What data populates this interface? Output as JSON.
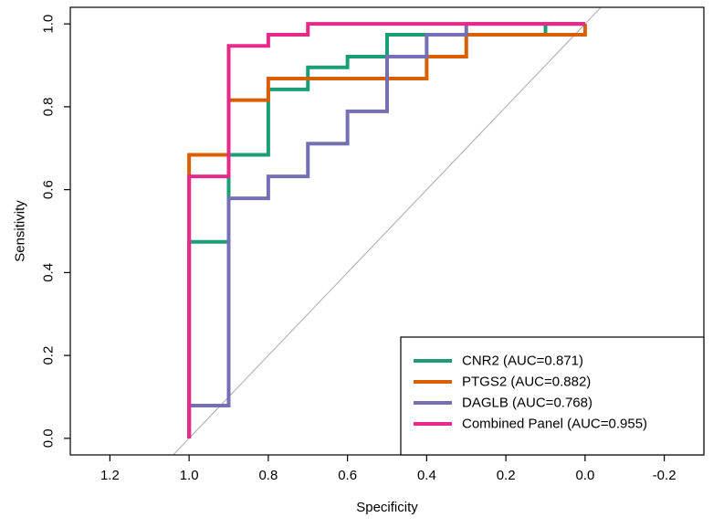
{
  "chart_data": {
    "type": "line",
    "title": "",
    "xlabel": "Specificity",
    "ylabel": "Sensitivity",
    "xlim": [
      1.3,
      -0.3
    ],
    "ylim": [
      -0.04,
      1.04
    ],
    "x_reversed": true,
    "grid": false,
    "legend_position": "bottom-right",
    "x_ticks": [
      1.2,
      1.0,
      0.8,
      0.6,
      0.4,
      0.2,
      0.0,
      -0.2
    ],
    "x_tick_labels": [
      "1.2",
      "1.0",
      "0.8",
      "0.6",
      "0.4",
      "0.2",
      "0.0",
      "-0.2"
    ],
    "y_ticks": [
      0.0,
      0.2,
      0.4,
      0.6,
      0.8,
      1.0
    ],
    "y_tick_labels": [
      "0.0",
      "0.2",
      "0.4",
      "0.6",
      "0.8",
      "1.0"
    ],
    "reference_line": {
      "type": "diagonal",
      "color": "#aaaaaa"
    },
    "series": [
      {
        "name": "CNR2 (AUC=0.871)",
        "color": "#1b9e77",
        "points": [
          [
            1.0,
            0.0
          ],
          [
            1.0,
            0.474
          ],
          [
            0.9,
            0.474
          ],
          [
            0.9,
            0.684
          ],
          [
            0.8,
            0.684
          ],
          [
            0.8,
            0.842
          ],
          [
            0.7,
            0.842
          ],
          [
            0.7,
            0.895
          ],
          [
            0.6,
            0.895
          ],
          [
            0.6,
            0.921
          ],
          [
            0.5,
            0.921
          ],
          [
            0.5,
            0.974
          ],
          [
            0.1,
            0.974
          ],
          [
            0.1,
            1.0
          ],
          [
            0.0,
            1.0
          ]
        ]
      },
      {
        "name": "PTGS2 (AUC=0.882)",
        "color": "#d95f02",
        "points": [
          [
            1.0,
            0.0
          ],
          [
            1.0,
            0.684
          ],
          [
            0.9,
            0.684
          ],
          [
            0.9,
            0.816
          ],
          [
            0.8,
            0.816
          ],
          [
            0.8,
            0.868
          ],
          [
            0.4,
            0.868
          ],
          [
            0.4,
            0.921
          ],
          [
            0.3,
            0.921
          ],
          [
            0.3,
            0.974
          ],
          [
            0.0,
            0.974
          ],
          [
            0.0,
            1.0
          ]
        ]
      },
      {
        "name": "DAGLB (AUC=0.768)",
        "color": "#7570b3",
        "points": [
          [
            1.0,
            0.0
          ],
          [
            1.0,
            0.079
          ],
          [
            0.9,
            0.079
          ],
          [
            0.9,
            0.579
          ],
          [
            0.8,
            0.579
          ],
          [
            0.8,
            0.632
          ],
          [
            0.7,
            0.632
          ],
          [
            0.7,
            0.711
          ],
          [
            0.6,
            0.711
          ],
          [
            0.6,
            0.789
          ],
          [
            0.5,
            0.789
          ],
          [
            0.5,
            0.921
          ],
          [
            0.4,
            0.921
          ],
          [
            0.4,
            0.974
          ],
          [
            0.3,
            0.974
          ],
          [
            0.3,
            1.0
          ],
          [
            0.0,
            1.0
          ]
        ]
      },
      {
        "name": "Combined Panel (AUC=0.955)",
        "color": "#e7298a",
        "points": [
          [
            1.0,
            0.0
          ],
          [
            1.0,
            0.632
          ],
          [
            0.9,
            0.632
          ],
          [
            0.9,
            0.947
          ],
          [
            0.8,
            0.947
          ],
          [
            0.8,
            0.974
          ],
          [
            0.7,
            0.974
          ],
          [
            0.7,
            1.0
          ],
          [
            0.0,
            1.0
          ]
        ]
      }
    ]
  }
}
